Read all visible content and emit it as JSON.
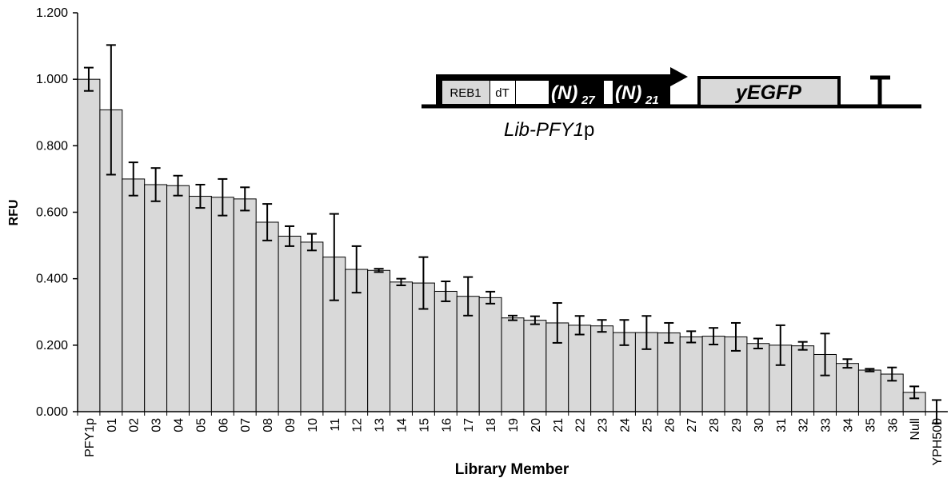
{
  "chart_data": {
    "type": "bar",
    "xlabel": "Library Member",
    "ylabel": "RFU",
    "categories": [
      "PFY1p",
      "01",
      "02",
      "03",
      "04",
      "05",
      "06",
      "07",
      "08",
      "09",
      "10",
      "11",
      "12",
      "13",
      "14",
      "15",
      "16",
      "17",
      "18",
      "19",
      "20",
      "21",
      "22",
      "23",
      "24",
      "25",
      "26",
      "27",
      "28",
      "29",
      "30",
      "31",
      "32",
      "33",
      "34",
      "35",
      "36",
      "Null",
      "YPH500"
    ],
    "values": [
      1.0,
      0.908,
      0.7,
      0.683,
      0.68,
      0.648,
      0.645,
      0.64,
      0.57,
      0.528,
      0.51,
      0.465,
      0.428,
      0.425,
      0.39,
      0.387,
      0.362,
      0.347,
      0.343,
      0.282,
      0.275,
      0.267,
      0.26,
      0.258,
      0.238,
      0.238,
      0.237,
      0.225,
      0.227,
      0.225,
      0.205,
      0.2,
      0.198,
      0.172,
      0.145,
      0.125,
      0.113,
      0.058,
      0.0
    ],
    "errors": [
      0.035,
      0.195,
      0.05,
      0.05,
      0.03,
      0.035,
      0.055,
      0.035,
      0.055,
      0.03,
      0.025,
      0.13,
      0.07,
      0.005,
      0.01,
      0.078,
      0.03,
      0.058,
      0.018,
      0.007,
      0.012,
      0.06,
      0.028,
      0.018,
      0.038,
      0.05,
      0.03,
      0.017,
      0.025,
      0.042,
      0.015,
      0.06,
      0.012,
      0.063,
      0.013,
      0.004,
      0.02,
      0.018,
      0.035
    ],
    "color": "#d9d9d9",
    "ylim": [
      0,
      1.2
    ],
    "yticks": [
      {
        "value": 0,
        "label": "0.000"
      },
      {
        "value": 0.2,
        "label": "0.200"
      },
      {
        "value": 0.4,
        "label": "0.400"
      },
      {
        "value": 0.6,
        "label": "0.600"
      },
      {
        "value": 0.8,
        "label": "0.800"
      },
      {
        "value": 1.0,
        "label": "1.000"
      },
      {
        "value": 1.2,
        "label": "1.200"
      }
    ],
    "grid": false,
    "inset": {
      "reb1": "REB1",
      "dt": "dT",
      "n": "(N)",
      "sub1": "27",
      "sub2": "21",
      "gene": "yEGFP",
      "promoter": "Lib-PFY1",
      "promoter_suffix": "p"
    }
  }
}
